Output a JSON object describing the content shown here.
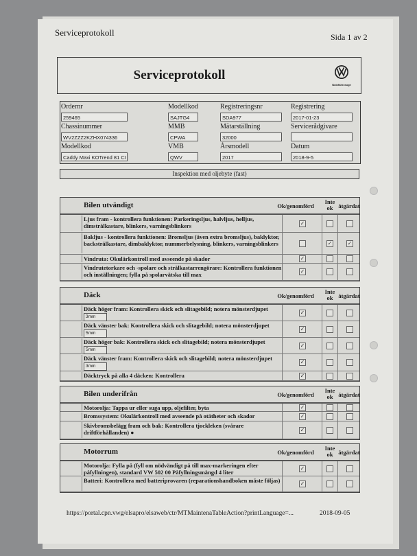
{
  "header": {
    "left": "Serviceprotokoll",
    "right": "Sida 1 av 2"
  },
  "title": "Serviceprotokoll",
  "logo": {
    "text": "Nutzfahrzeuge",
    "icon": "vw-logo"
  },
  "info": [
    {
      "label": "Ordernr",
      "value": "259465"
    },
    {
      "label": "Modellkod",
      "value": "SAJTG4"
    },
    {
      "label": "Registreringsnr",
      "value": "SDA977"
    },
    {
      "label": "Registrering",
      "value": "2017-01-23"
    },
    {
      "label": "Chassinummer",
      "value": "WV2ZZZ2KZHX074336"
    },
    {
      "label": "MMB",
      "value": "CPWA"
    },
    {
      "label": "Mätarställning",
      "value": "32000"
    },
    {
      "label": "Servicerådgivare",
      "value": ""
    },
    {
      "label": "Modellkod",
      "value": "Caddy Maxi KOTrend 81 CI"
    },
    {
      "label": "VMB",
      "value": "QWV"
    },
    {
      "label": "Årsmodell",
      "value": "2017"
    },
    {
      "label": "Datum",
      "value": "2018-9-5"
    }
  ],
  "inspection": "Inspektion med oljebyte (fast)",
  "columns": {
    "ok": "Ok/genomförd",
    "not_ok": "Inte ok",
    "fixed": "åtgärdat"
  },
  "sections": [
    {
      "title": "Bilen utvändigt",
      "rows": [
        {
          "text": "Ljus fram - kontrollera funktionen: Parkeringsljus, halvljus, helljus, dimstrålkastare, blinkers, varningsblinkers",
          "ok": true,
          "not_ok": false,
          "fixed": false
        },
        {
          "text": "Bakljus - kontrollera funktionen: Bromsljus (även extra bromsljus), baklyktor, backstrålkastare, dimbaklyktor, nummerbelysning, blinkers, varningsblinkers",
          "ok": false,
          "not_ok": true,
          "fixed": true
        },
        {
          "text": "Vindruta: Okulärkontroll med avseende på skador",
          "ok": true,
          "not_ok": false,
          "fixed": false
        },
        {
          "text": "Vindrutetorkare och -spolare och strålkastarrengörare: Kontrollera funktionen och inställningen; fylla på spolarvätska till max",
          "ok": true,
          "not_ok": false,
          "fixed": false
        }
      ]
    },
    {
      "title": "Däck",
      "rows": [
        {
          "text": "Däck höger fram: Kontrollera skick och slitagebild; notera mönsterdjupet",
          "value": "3mm",
          "ok": true,
          "not_ok": false,
          "fixed": false
        },
        {
          "text": "Däck vänster bak: Kontrollera skick och slitagebild; notera mönsterdjupet",
          "value": "5mm",
          "ok": true,
          "not_ok": false,
          "fixed": false
        },
        {
          "text": "Däck höger bak: Kontrollera skick och slitagebild; notera mönsterdjupet",
          "value": "5mm",
          "ok": true,
          "not_ok": false,
          "fixed": false
        },
        {
          "text": "Däck vänster fram: Kontrollera skick och slitagebild; notera mönsterdjupet",
          "value": "3mm",
          "ok": true,
          "not_ok": false,
          "fixed": false
        },
        {
          "text": "Däcktryck på alla 4 däcken: Kontrollera",
          "ok": true,
          "not_ok": false,
          "fixed": false
        }
      ]
    },
    {
      "title": "Bilen underifrån",
      "rows": [
        {
          "text": "Motorolja: Tappa ur eller suga upp, oljefilter, byta",
          "ok": true,
          "not_ok": false,
          "fixed": false
        },
        {
          "text": "Bromssystem: Okulärkontroll med avseende på otätheter och skador",
          "ok": true,
          "not_ok": false,
          "fixed": false
        },
        {
          "text": "Skivbromsbelägg fram och bak: Kontrollera tjockleken (svårare driftförhållanden) ●",
          "ok": true,
          "not_ok": false,
          "fixed": false
        }
      ]
    },
    {
      "title": "Motorrum",
      "rows": [
        {
          "text": "Motorolja: Fylla på (fyll om nödvändigt på till max-markeringen efter påfyllningen), standard VW 502 00 Påfyllningsmängd 4 liter",
          "ok": true,
          "not_ok": false,
          "fixed": false
        },
        {
          "text": "Batteri: Kontrollera med batteriprovaren (reparationshandboken måste följas)",
          "ok": true,
          "not_ok": false,
          "fixed": false
        }
      ]
    }
  ],
  "footer": {
    "url": "https://portal.cpn.vwg/elsapro/elsaweb/ctr/MTMaintenaTableAction?printLanguage=...",
    "date": "2018-09-05"
  }
}
